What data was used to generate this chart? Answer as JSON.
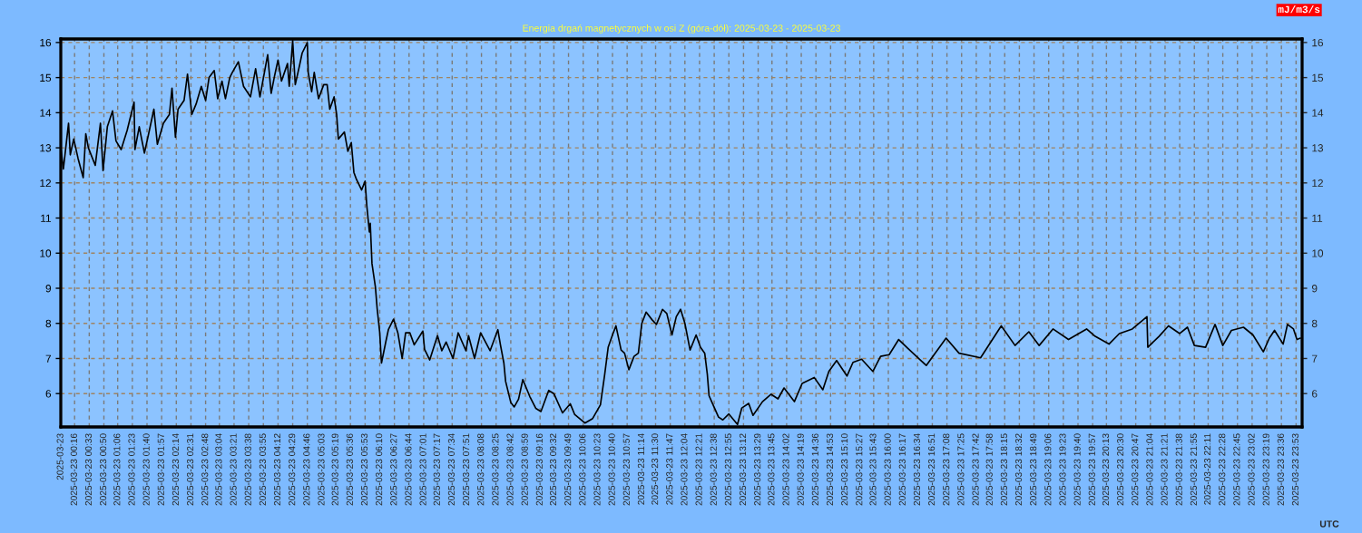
{
  "chart_data": {
    "type": "line",
    "title": "Energia drgań magnetycznych w osi Z (góra-dół): 2025-03-23 - 2025-03-23",
    "xlabel": "UTC",
    "annotations": [
      "mJ/m3/s"
    ],
    "x": [
      "2025-03-23T00:00",
      "2025-03-23T00:03",
      "2025-03-23T00:09",
      "2025-03-23T00:11",
      "2025-03-23T00:15",
      "2025-03-23T00:20",
      "2025-03-23T00:26",
      "2025-03-23T00:29",
      "2025-03-23T00:32",
      "2025-03-23T00:40",
      "2025-03-23T00:46",
      "2025-03-23T00:49",
      "2025-03-23T00:54",
      "2025-03-23T01:00",
      "2025-03-23T01:04",
      "2025-03-23T01:10",
      "2025-03-23T01:17",
      "2025-03-23T01:25",
      "2025-03-23T01:26",
      "2025-03-23T01:31",
      "2025-03-23T01:37",
      "2025-03-23T01:41",
      "2025-03-23T01:48",
      "2025-03-23T01:52",
      "2025-03-23T01:59",
      "2025-03-23T02:06",
      "2025-03-23T02:09",
      "2025-03-23T02:13",
      "2025-03-23T02:16",
      "2025-03-23T02:23",
      "2025-03-23T02:27",
      "2025-03-23T02:32",
      "2025-03-23T02:37",
      "2025-03-23T02:43",
      "2025-03-23T02:48",
      "2025-03-23T02:52",
      "2025-03-23T02:58",
      "2025-03-23T03:02",
      "2025-03-23T03:07",
      "2025-03-23T03:11",
      "2025-03-23T03:16",
      "2025-03-23T03:19",
      "2025-03-23T03:26",
      "2025-03-23T03:32",
      "2025-03-23T03:40",
      "2025-03-23T03:46",
      "2025-03-23T03:51",
      "2025-03-23T04:00",
      "2025-03-23T04:04",
      "2025-03-23T04:08",
      "2025-03-23T04:12",
      "2025-03-23T04:16",
      "2025-03-23T04:23",
      "2025-03-23T04:25",
      "2025-03-23T04:29",
      "2025-03-23T04:32",
      "2025-03-23T04:37",
      "2025-03-23T04:40",
      "2025-03-23T04:46",
      "2025-03-23T04:47",
      "2025-03-23T04:51",
      "2025-03-23T04:54",
      "2025-03-23T04:59",
      "2025-03-23T05:05",
      "2025-03-23T05:09",
      "2025-03-23T05:12",
      "2025-03-23T05:17",
      "2025-03-23T05:20",
      "2025-03-23T05:22",
      "2025-03-23T05:29",
      "2025-03-23T05:33",
      "2025-03-23T05:37",
      "2025-03-23T05:40",
      "2025-03-23T05:43",
      "2025-03-23T05:49",
      "2025-03-23T05:53",
      "2025-03-23T05:55",
      "2025-03-23T05:58",
      "2025-03-23T05:59",
      "2025-03-23T06:01",
      "2025-03-23T06:05",
      "2025-03-23T06:07",
      "2025-03-23T06:10",
      "2025-03-23T06:12",
      "2025-03-23T06:17",
      "2025-03-23T06:20",
      "2025-03-23T06:26",
      "2025-03-23T06:31",
      "2025-03-23T06:36",
      "2025-03-23T06:40",
      "2025-03-23T06:45",
      "2025-03-23T06:50",
      "2025-03-23T07:00",
      "2025-03-23T07:02",
      "2025-03-23T07:08",
      "2025-03-23T07:17",
      "2025-03-23T07:22",
      "2025-03-23T07:27",
      "2025-03-23T07:35",
      "2025-03-23T07:41",
      "2025-03-23T07:50",
      "2025-03-23T07:53",
      "2025-03-23T08:00",
      "2025-03-23T08:07",
      "2025-03-23T08:18",
      "2025-03-23T08:27",
      "2025-03-23T08:30",
      "2025-03-23T08:34",
      "2025-03-23T08:36",
      "2025-03-23T08:42",
      "2025-03-23T08:46",
      "2025-03-23T08:51",
      "2025-03-23T08:56",
      "2025-03-23T09:04",
      "2025-03-23T09:11",
      "2025-03-23T09:17",
      "2025-03-23T09:26",
      "2025-03-23T09:32",
      "2025-03-23T09:42",
      "2025-03-23T09:51",
      "2025-03-23T09:56",
      "2025-03-23T10:08",
      "2025-03-23T10:17",
      "2025-03-23T10:26",
      "2025-03-23T10:31",
      "2025-03-23T10:35",
      "2025-03-23T10:40",
      "2025-03-23T10:44",
      "2025-03-23T10:50",
      "2025-03-23T10:54",
      "2025-03-23T10:59",
      "2025-03-23T11:05",
      "2025-03-23T11:10",
      "2025-03-23T11:14",
      "2025-03-23T11:19",
      "2025-03-23T11:26",
      "2025-03-23T11:31",
      "2025-03-23T11:38",
      "2025-03-23T11:43",
      "2025-03-23T11:49",
      "2025-03-23T11:54",
      "2025-03-23T11:59",
      "2025-03-23T12:04",
      "2025-03-23T12:10",
      "2025-03-23T12:17",
      "2025-03-23T12:22",
      "2025-03-23T12:27",
      "2025-03-23T12:30",
      "2025-03-23T12:32",
      "2025-03-23T12:36",
      "2025-03-23T12:43",
      "2025-03-23T12:48",
      "2025-03-23T12:55",
      "2025-03-23T13:05",
      "2025-03-23T13:10",
      "2025-03-23T13:18",
      "2025-03-23T13:23",
      "2025-03-23T13:34",
      "2025-03-23T13:44",
      "2025-03-23T13:52",
      "2025-03-23T13:59",
      "2025-03-23T14:11",
      "2025-03-23T14:20",
      "2025-03-23T14:34",
      "2025-03-23T14:44",
      "2025-03-23T14:51",
      "2025-03-23T15:00",
      "2025-03-23T15:12",
      "2025-03-23T15:19",
      "2025-03-23T15:29",
      "2025-03-23T15:42",
      "2025-03-23T15:51",
      "2025-03-23T16:01",
      "2025-03-23T16:12",
      "2025-03-23T16:23",
      "2025-03-23T16:44",
      "2025-03-23T17:07",
      "2025-03-23T17:22",
      "2025-03-23T17:47",
      "2025-03-23T18:11",
      "2025-03-23T18:27",
      "2025-03-23T18:43",
      "2025-03-23T18:55",
      "2025-03-23T19:11",
      "2025-03-23T19:29",
      "2025-03-23T19:50",
      "2025-03-23T20:00",
      "2025-03-23T20:16",
      "2025-03-23T20:28",
      "2025-03-23T20:43",
      "2025-03-23T21:00",
      "2025-03-23T21:01",
      "2025-03-23T21:14",
      "2025-03-23T21:25",
      "2025-03-23T21:38",
      "2025-03-23T21:47",
      "2025-03-23T21:55",
      "2025-03-23T22:08",
      "2025-03-23T22:19",
      "2025-03-23T22:28",
      "2025-03-23T22:38",
      "2025-03-23T22:52",
      "2025-03-23T23:03",
      "2025-03-23T23:15",
      "2025-03-23T23:22",
      "2025-03-23T23:28",
      "2025-03-23T23:38",
      "2025-03-23T23:43",
      "2025-03-23T23:50",
      "2025-03-23T23:54",
      "2025-03-23T23:58"
    ],
    "series": [
      {
        "color": "#000000",
        "line_style": "solid",
        "values": [
          13.0,
          12.4,
          13.7,
          12.8,
          13.25,
          12.7,
          12.15,
          13.4,
          13.0,
          12.5,
          13.7,
          12.35,
          13.6,
          14.05,
          13.2,
          12.95,
          13.5,
          14.3,
          12.95,
          13.6,
          12.85,
          13.3,
          14.1,
          13.1,
          13.7,
          13.95,
          14.7,
          13.3,
          14.1,
          14.35,
          15.1,
          13.95,
          14.25,
          14.75,
          14.35,
          15.0,
          15.2,
          14.4,
          14.9,
          14.4,
          15.0,
          15.15,
          15.45,
          14.75,
          14.45,
          15.25,
          14.45,
          15.65,
          14.55,
          15.05,
          15.5,
          14.9,
          15.4,
          14.75,
          16.05,
          14.8,
          15.35,
          15.7,
          16.0,
          15.15,
          14.6,
          15.15,
          14.4,
          14.8,
          14.8,
          14.1,
          14.45,
          13.95,
          13.25,
          13.45,
          12.9,
          13.15,
          12.3,
          12.1,
          11.8,
          12.05,
          11.35,
          10.6,
          10.85,
          9.7,
          9.03,
          8.42,
          7.73,
          6.87,
          7.47,
          7.82,
          8.12,
          7.73,
          7.0,
          7.73,
          7.73,
          7.39,
          7.78,
          7.26,
          6.96,
          7.65,
          7.22,
          7.47,
          7.0,
          7.73,
          7.22,
          7.65,
          7.0,
          7.73,
          7.22,
          7.82,
          7.39,
          6.87,
          6.35,
          5.75,
          5.62,
          5.84,
          6.4,
          5.92,
          5.58,
          5.49,
          6.09,
          6.0,
          5.45,
          5.71,
          5.41,
          5.16,
          5.29,
          5.68,
          6.55,
          7.32,
          7.67,
          7.93,
          7.24,
          7.15,
          6.68,
          7.06,
          7.15,
          8.0,
          8.32,
          8.1,
          7.97,
          8.4,
          8.28,
          7.67,
          8.19,
          8.4,
          8.0,
          7.24,
          7.67,
          7.32,
          7.15,
          6.55,
          5.94,
          5.72,
          5.33,
          5.25,
          5.42,
          5.12,
          5.59,
          5.72,
          5.38,
          5.77,
          5.98,
          5.85,
          6.16,
          5.77,
          6.29,
          6.46,
          6.11,
          6.63,
          6.94,
          6.5,
          6.89,
          6.98,
          6.63,
          7.06,
          7.11,
          7.54,
          7.28,
          6.8,
          7.58,
          7.15,
          7.02,
          7.93,
          7.37,
          7.76,
          7.37,
          7.84,
          7.54,
          7.84,
          7.63,
          7.41,
          7.71,
          7.84,
          8.19,
          7.32,
          7.63,
          7.93,
          7.71,
          7.89,
          7.37,
          7.32,
          7.97,
          7.37,
          7.8,
          7.89,
          7.67,
          7.19,
          7.58,
          7.8,
          7.41,
          7.97,
          7.84,
          7.54,
          7.58
        ]
      }
    ],
    "xlim": [
      "2025-03-23T00:00",
      "2025-03-24T00:00"
    ],
    "xticks": [
      {
        "value": "2025-03-23T00:00",
        "label": "2025-03-23"
      },
      {
        "value": "2025-03-23T00:16",
        "label": "2025-03-23 00:16"
      },
      {
        "value": "2025-03-23T00:33",
        "label": "2025-03-23 00:33"
      },
      {
        "value": "2025-03-23T00:50",
        "label": "2025-03-23 00:50"
      },
      {
        "value": "2025-03-23T01:06",
        "label": "2025-03-23 01:06"
      },
      {
        "value": "2025-03-23T01:23",
        "label": "2025-03-23 01:23"
      },
      {
        "value": "2025-03-23T01:40",
        "label": "2025-03-23 01:40"
      },
      {
        "value": "2025-03-23T01:57",
        "label": "2025-03-23 01:57"
      },
      {
        "value": "2025-03-23T02:14",
        "label": "2025-03-23 02:14"
      },
      {
        "value": "2025-03-23T02:31",
        "label": "2025-03-23 02:31"
      },
      {
        "value": "2025-03-23T02:48",
        "label": "2025-03-23 02:48"
      },
      {
        "value": "2025-03-23T03:04",
        "label": "2025-03-23 03:04"
      },
      {
        "value": "2025-03-23T03:21",
        "label": "2025-03-23 03:21"
      },
      {
        "value": "2025-03-23T03:38",
        "label": "2025-03-23 03:38"
      },
      {
        "value": "2025-03-23T03:55",
        "label": "2025-03-23 03:55"
      },
      {
        "value": "2025-03-23T04:12",
        "label": "2025-03-23 04:12"
      },
      {
        "value": "2025-03-23T04:29",
        "label": "2025-03-23 04:29"
      },
      {
        "value": "2025-03-23T04:46",
        "label": "2025-03-23 04:46"
      },
      {
        "value": "2025-03-23T05:03",
        "label": "2025-03-23 05:03"
      },
      {
        "value": "2025-03-23T05:19",
        "label": "2025-03-23 05:19"
      },
      {
        "value": "2025-03-23T05:36",
        "label": "2025-03-23 05:36"
      },
      {
        "value": "2025-03-23T05:53",
        "label": "2025-03-23 05:53"
      },
      {
        "value": "2025-03-23T06:10",
        "label": "2025-03-23 06:10"
      },
      {
        "value": "2025-03-23T06:27",
        "label": "2025-03-23 06:27"
      },
      {
        "value": "2025-03-23T06:44",
        "label": "2025-03-23 06:44"
      },
      {
        "value": "2025-03-23T07:01",
        "label": "2025-03-23 07:01"
      },
      {
        "value": "2025-03-23T07:17",
        "label": "2025-03-23 07:17"
      },
      {
        "value": "2025-03-23T07:34",
        "label": "2025-03-23 07:34"
      },
      {
        "value": "2025-03-23T07:51",
        "label": "2025-03-23 07:51"
      },
      {
        "value": "2025-03-23T08:08",
        "label": "2025-03-23 08:08"
      },
      {
        "value": "2025-03-23T08:25",
        "label": "2025-03-23 08:25"
      },
      {
        "value": "2025-03-23T08:42",
        "label": "2025-03-23 08:42"
      },
      {
        "value": "2025-03-23T08:59",
        "label": "2025-03-23 08:59"
      },
      {
        "value": "2025-03-23T09:16",
        "label": "2025-03-23 09:16"
      },
      {
        "value": "2025-03-23T09:32",
        "label": "2025-03-23 09:32"
      },
      {
        "value": "2025-03-23T09:49",
        "label": "2025-03-23 09:49"
      },
      {
        "value": "2025-03-23T10:06",
        "label": "2025-03-23 10:06"
      },
      {
        "value": "2025-03-23T10:23",
        "label": "2025-03-23 10:23"
      },
      {
        "value": "2025-03-23T10:40",
        "label": "2025-03-23 10:40"
      },
      {
        "value": "2025-03-23T10:57",
        "label": "2025-03-23 10:57"
      },
      {
        "value": "2025-03-23T11:14",
        "label": "2025-03-23 11:14"
      },
      {
        "value": "2025-03-23T11:30",
        "label": "2025-03-23 11:30"
      },
      {
        "value": "2025-03-23T11:47",
        "label": "2025-03-23 11:47"
      },
      {
        "value": "2025-03-23T12:04",
        "label": "2025-03-23 12:04"
      },
      {
        "value": "2025-03-23T12:21",
        "label": "2025-03-23 12:21"
      },
      {
        "value": "2025-03-23T12:38",
        "label": "2025-03-23 12:38"
      },
      {
        "value": "2025-03-23T12:55",
        "label": "2025-03-23 12:55"
      },
      {
        "value": "2025-03-23T13:12",
        "label": "2025-03-23 13:12"
      },
      {
        "value": "2025-03-23T13:29",
        "label": "2025-03-23 13:29"
      },
      {
        "value": "2025-03-23T13:45",
        "label": "2025-03-23 13:45"
      },
      {
        "value": "2025-03-23T14:02",
        "label": "2025-03-23 14:02"
      },
      {
        "value": "2025-03-23T14:19",
        "label": "2025-03-23 14:19"
      },
      {
        "value": "2025-03-23T14:36",
        "label": "2025-03-23 14:36"
      },
      {
        "value": "2025-03-23T14:53",
        "label": "2025-03-23 14:53"
      },
      {
        "value": "2025-03-23T15:10",
        "label": "2025-03-23 15:10"
      },
      {
        "value": "2025-03-23T15:27",
        "label": "2025-03-23 15:27"
      },
      {
        "value": "2025-03-23T15:43",
        "label": "2025-03-23 15:43"
      },
      {
        "value": "2025-03-23T16:00",
        "label": "2025-03-23 16:00"
      },
      {
        "value": "2025-03-23T16:17",
        "label": "2025-03-23 16:17"
      },
      {
        "value": "2025-03-23T16:34",
        "label": "2025-03-23 16:34"
      },
      {
        "value": "2025-03-23T16:51",
        "label": "2025-03-23 16:51"
      },
      {
        "value": "2025-03-23T17:08",
        "label": "2025-03-23 17:08"
      },
      {
        "value": "2025-03-23T17:25",
        "label": "2025-03-23 17:25"
      },
      {
        "value": "2025-03-23T17:42",
        "label": "2025-03-23 17:42"
      },
      {
        "value": "2025-03-23T17:58",
        "label": "2025-03-23 17:58"
      },
      {
        "value": "2025-03-23T18:15",
        "label": "2025-03-23 18:15"
      },
      {
        "value": "2025-03-23T18:32",
        "label": "2025-03-23 18:32"
      },
      {
        "value": "2025-03-23T18:49",
        "label": "2025-03-23 18:49"
      },
      {
        "value": "2025-03-23T19:06",
        "label": "2025-03-23 19:06"
      },
      {
        "value": "2025-03-23T19:23",
        "label": "2025-03-23 19:23"
      },
      {
        "value": "2025-03-23T19:40",
        "label": "2025-03-23 19:40"
      },
      {
        "value": "2025-03-23T19:57",
        "label": "2025-03-23 19:57"
      },
      {
        "value": "2025-03-23T20:13",
        "label": "2025-03-23 20:13"
      },
      {
        "value": "2025-03-23T20:30",
        "label": "2025-03-23 20:30"
      },
      {
        "value": "2025-03-23T20:47",
        "label": "2025-03-23 20:47"
      },
      {
        "value": "2025-03-23T21:04",
        "label": "2025-03-23 21:04"
      },
      {
        "value": "2025-03-23T21:21",
        "label": "2025-03-23 21:21"
      },
      {
        "value": "2025-03-23T21:38",
        "label": "2025-03-23 21:38"
      },
      {
        "value": "2025-03-23T21:55",
        "label": "2025-03-23 21:55"
      },
      {
        "value": "2025-03-23T22:11",
        "label": "2025-03-23 22:11"
      },
      {
        "value": "2025-03-23T22:28",
        "label": "2025-03-23 22:28"
      },
      {
        "value": "2025-03-23T22:45",
        "label": "2025-03-23 22:45"
      },
      {
        "value": "2025-03-23T23:02",
        "label": "2025-03-23 23:02"
      },
      {
        "value": "2025-03-23T23:19",
        "label": "2025-03-23 23:19"
      },
      {
        "value": "2025-03-23T23:36",
        "label": "2025-03-23 23:36"
      },
      {
        "value": "2025-03-23T23:53",
        "label": "2025-03-23 23:53"
      }
    ],
    "ylim": [
      5.05,
      16.1
    ],
    "yticks": [
      6,
      7,
      8,
      9,
      10,
      11,
      12,
      13,
      14,
      15,
      16
    ],
    "y2lim": [
      5.05,
      16.1
    ],
    "y2ticks": [
      6,
      7,
      8,
      9,
      10,
      11,
      12,
      13,
      14,
      15,
      16
    ],
    "grid": true
  }
}
